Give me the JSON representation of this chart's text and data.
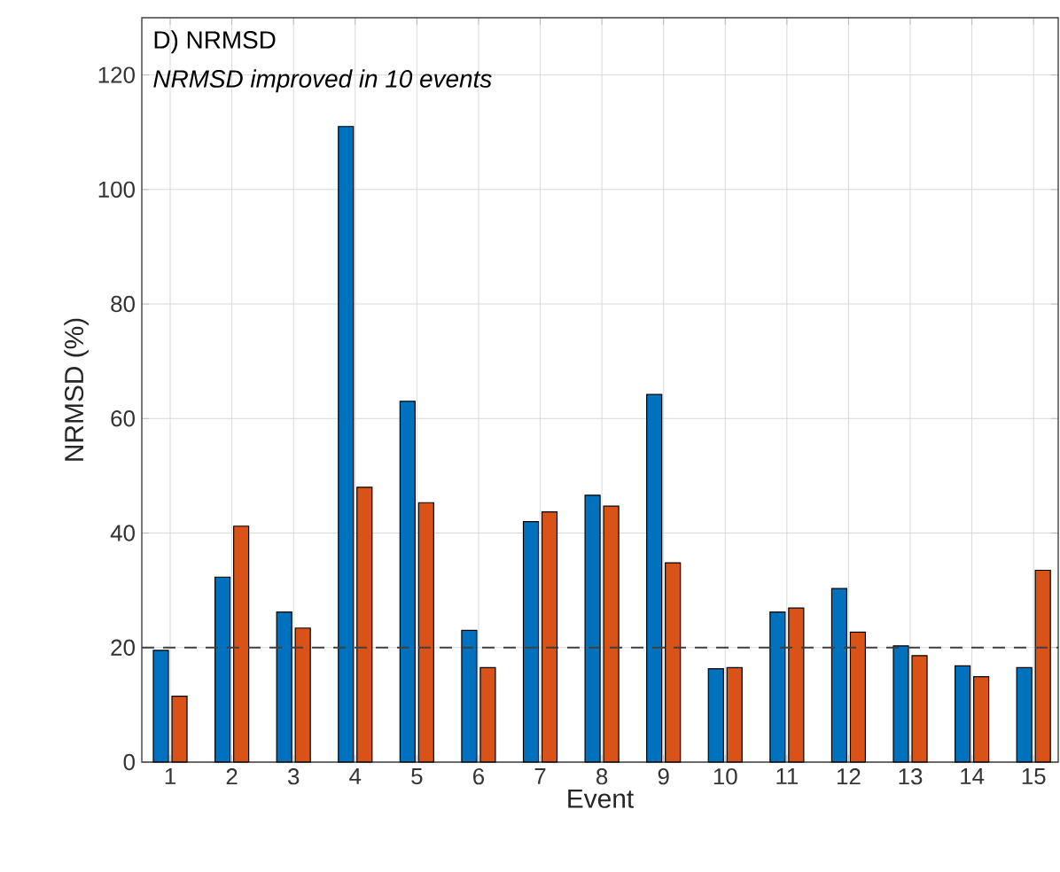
{
  "chart_data": {
    "type": "bar",
    "title": "D) NRMSD",
    "subtitle": "NRMSD improved in 10 events",
    "xlabel": "Event",
    "ylabel": "NRMSD (%)",
    "categories": [
      "1",
      "2",
      "3",
      "4",
      "5",
      "6",
      "7",
      "8",
      "9",
      "10",
      "11",
      "12",
      "13",
      "14",
      "15"
    ],
    "series": [
      {
        "color": "#0072bd",
        "values": [
          19.5,
          32.3,
          26.2,
          111,
          63,
          23,
          42,
          46.6,
          64.2,
          16.3,
          26.2,
          30.3,
          20.3,
          16.8,
          16.5
        ]
      },
      {
        "color": "#d95319",
        "values": [
          11.5,
          41.2,
          23.4,
          48,
          45.3,
          16.5,
          43.7,
          44.7,
          34.8,
          16.5,
          26.9,
          22.7,
          18.6,
          14.9,
          33.5
        ]
      }
    ],
    "ylim": [
      0,
      130
    ],
    "yticks": [
      0,
      20,
      40,
      60,
      80,
      100,
      120
    ],
    "grid": true,
    "ref_lines": [
      {
        "axis": "y",
        "value": 20,
        "color": "#404040",
        "line_style": "dashed"
      }
    ]
  }
}
